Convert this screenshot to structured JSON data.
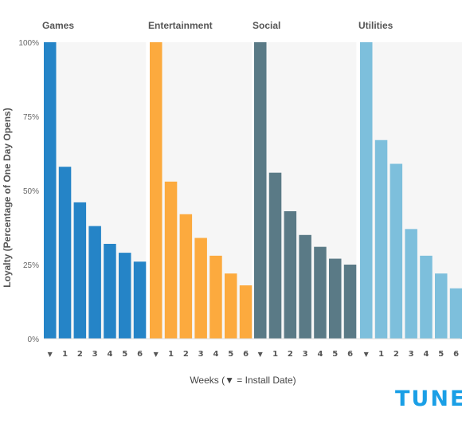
{
  "chart_data": {
    "type": "bar",
    "ylabel": "Loyalty (Percentage of One Day Opens)",
    "xlabel": "Weeks (▼ = Install Date)",
    "ylim": [
      0,
      100
    ],
    "yticks": [
      "0%",
      "25%",
      "50%",
      "75%",
      "100%"
    ],
    "categories": [
      "▼",
      "1",
      "2",
      "3",
      "4",
      "5",
      "6"
    ],
    "series": [
      {
        "name": "Games",
        "color": "#2584c7",
        "values": [
          100,
          58,
          46,
          38,
          32,
          29,
          26
        ]
      },
      {
        "name": "Entertainment",
        "color": "#fcaa3e",
        "values": [
          100,
          53,
          42,
          34,
          28,
          22,
          18
        ]
      },
      {
        "name": "Social",
        "color": "#5a7a86",
        "values": [
          100,
          56,
          43,
          35,
          31,
          27,
          25
        ]
      },
      {
        "name": "Utilities",
        "color": "#7dbfdc",
        "values": [
          100,
          67,
          59,
          37,
          28,
          22,
          17
        ]
      }
    ]
  },
  "logo_text": "TUNE"
}
